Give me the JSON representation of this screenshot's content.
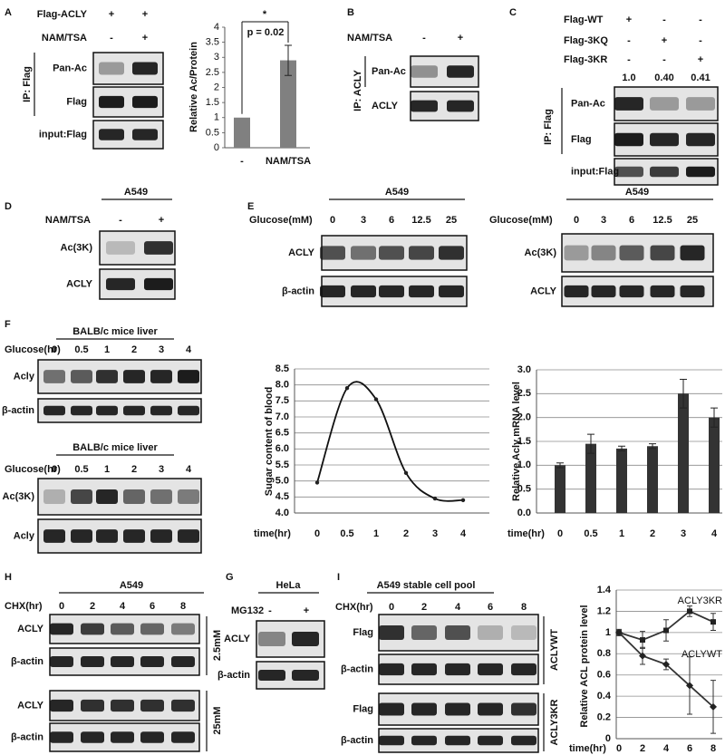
{
  "panel_a": {
    "letter": "A",
    "rows": [
      {
        "label": "Flag-ACLY",
        "marks": [
          "+",
          "+"
        ]
      },
      {
        "label": "NAM/TSA",
        "marks": [
          "-",
          "+"
        ]
      }
    ],
    "ip": "IP: Flag",
    "blots": [
      "Pan-Ac",
      "Flag",
      "input:Flag"
    ]
  },
  "panel_b": {
    "letter": "B",
    "rows": [
      {
        "label": "NAM/TSA",
        "marks": [
          "-",
          "+"
        ]
      }
    ],
    "ip": "IP: ACLY",
    "blots": [
      "Pan-Ac",
      "ACLY"
    ]
  },
  "panel_c": {
    "letter": "C",
    "rows": [
      {
        "label": "Flag-WT",
        "marks": [
          "+",
          "-",
          "-"
        ]
      },
      {
        "label": "Flag-3KQ",
        "marks": [
          "-",
          "+",
          "-"
        ]
      },
      {
        "label": "Flag-3KR",
        "marks": [
          "-",
          "-",
          "+"
        ]
      }
    ],
    "quant": [
      "1.0",
      "0.40",
      "0.41"
    ],
    "ip": "IP: Flag",
    "blots": [
      "Pan-Ac",
      "Flag",
      "input:Flag"
    ]
  },
  "panel_d": {
    "letter": "D",
    "cell": "A549",
    "rows": [
      {
        "label": "NAM/TSA",
        "marks": [
          "-",
          "+"
        ]
      }
    ],
    "blots": [
      "Ac(3K)",
      "ACLY"
    ]
  },
  "panel_e": {
    "letter": "E",
    "left": {
      "cell": "A549",
      "row_label": "Glucose(mM)",
      "lanes": [
        "0",
        "3",
        "6",
        "12.5",
        "25"
      ],
      "blots": [
        "ACLY",
        "β-actin"
      ]
    },
    "right": {
      "cell": "A549",
      "row_label": "Glucose(mM)",
      "lanes": [
        "0",
        "3",
        "6",
        "12.5",
        "25"
      ],
      "blots": [
        "Ac(3K)",
        "ACLY"
      ]
    }
  },
  "panel_f": {
    "letter": "F",
    "top": {
      "tissue": "BALB/c mice liver",
      "row_label": "Glucose(hr)",
      "lanes": [
        "0",
        "0.5",
        "1",
        "2",
        "3",
        "4"
      ],
      "blots": [
        "Acly",
        "β-actin"
      ]
    },
    "bottom": {
      "tissue": "BALB/c mice liver",
      "row_label": "Glucose(hr)",
      "lanes": [
        "0",
        "0.5",
        "1",
        "2",
        "3",
        "4"
      ],
      "blots": [
        "Ac(3K)",
        "Acly"
      ]
    }
  },
  "panel_h": {
    "letter": "H",
    "cell": "A549",
    "row_label": "CHX(hr)",
    "lanes": [
      "0",
      "2",
      "4",
      "6",
      "8"
    ],
    "blots": [
      "ACLY",
      "β-actin",
      "ACLY",
      "β-actin"
    ],
    "groups": [
      "2.5mM",
      "25mM"
    ]
  },
  "panel_g": {
    "letter": "G",
    "cell": "HeLa",
    "rows": [
      {
        "label": "MG132",
        "marks": [
          "-",
          "+"
        ]
      }
    ],
    "blots": [
      "ACLY",
      "β-actin"
    ]
  },
  "panel_i": {
    "letter": "I",
    "cell": "A549 stable cell pool",
    "row_label": "CHX(hr)",
    "lanes": [
      "0",
      "2",
      "4",
      "6",
      "8"
    ],
    "blots": [
      "Flag",
      "β-actin",
      "Flag",
      "β-actin"
    ],
    "groups": [
      "ACLYWT",
      "ACLY3KR"
    ]
  },
  "chart_data": [
    {
      "type": "bar",
      "ylabel": "Relative Ac/Protein",
      "categories": [
        "-",
        "NAM/TSA"
      ],
      "values": [
        1,
        2.9
      ],
      "errors": [
        null,
        0.5
      ],
      "color": "#808080",
      "ylim": [
        0,
        4
      ],
      "yticks": [
        0,
        0.5,
        1,
        1.5,
        2,
        2.5,
        3,
        3.5,
        4
      ],
      "grid": false,
      "annotations": [
        "*",
        "p = 0.02"
      ]
    },
    {
      "type": "line",
      "ylabel": "Sugar content of blood",
      "xlabel": "time(hr)",
      "categories": [
        "0",
        "0.5",
        "1",
        "2",
        "3",
        "4"
      ],
      "values": [
        4.95,
        7.9,
        7.55,
        5.25,
        4.45,
        4.4
      ],
      "color": "#111111",
      "smooth": true,
      "marker": "dot",
      "ylim": [
        4,
        8.5
      ],
      "yticks": [
        {
          "value": 4,
          "label": "4.0"
        },
        4.5,
        {
          "value": 5,
          "label": "5.0"
        },
        5.5,
        {
          "value": 6,
          "label": "6.0"
        },
        6.5,
        {
          "value": 7,
          "label": "7.0"
        },
        7.5,
        {
          "value": 8,
          "label": "8.0"
        },
        8.5
      ],
      "grid": true
    },
    {
      "type": "bar",
      "ylabel": "Relative Acly mRNA level",
      "xlabel": "time(hr)",
      "categories": [
        "0",
        "0.5",
        "1",
        "2",
        "3",
        "4"
      ],
      "values": [
        1.0,
        1.45,
        1.35,
        1.4,
        2.5,
        2.0
      ],
      "errors": [
        0.05,
        0.2,
        0.05,
        0.05,
        0.3,
        0.2
      ],
      "color": "#333333",
      "ylim": [
        0,
        3
      ],
      "yticks": [
        {
          "value": 0,
          "label": "0.0"
        },
        0.5,
        {
          "value": 1,
          "label": "1.0"
        },
        1.5,
        {
          "value": 2,
          "label": "2.0"
        },
        2.5,
        {
          "value": 3,
          "label": "3.0"
        }
      ],
      "grid": true
    },
    {
      "type": "line",
      "ylabel": "Relative ACL protein level",
      "xlabel": "time(hr)",
      "categories": [
        "0",
        "2",
        "4",
        "6",
        "8"
      ],
      "series": [
        {
          "name": "ACLY3KR",
          "color": "#333333",
          "marker": "square",
          "values": [
            1,
            0.93,
            1.02,
            1.2,
            1.1
          ],
          "errors": [
            0.03,
            0.08,
            0.1,
            0.05,
            0.08
          ]
        },
        {
          "name": "ACLYWT",
          "color": "#333333",
          "marker": "diamond",
          "values": [
            1,
            0.78,
            0.7,
            0.5,
            0.3
          ],
          "errors": [
            0.02,
            0.08,
            0.05,
            0.27,
            0.25
          ]
        }
      ],
      "ylim": [
        0,
        1.4
      ],
      "yticks": [
        0,
        0.2,
        0.4,
        0.6,
        0.8,
        1,
        1.2,
        1.4
      ],
      "grid": true
    }
  ]
}
